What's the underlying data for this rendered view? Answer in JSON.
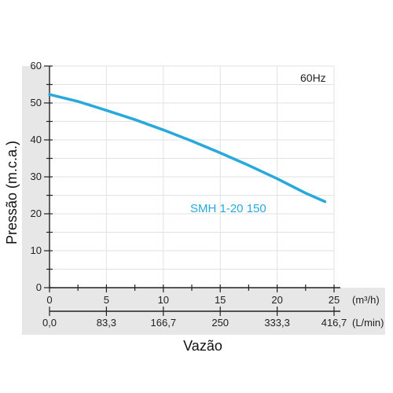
{
  "chart_data": {
    "type": "line",
    "ylabel": "Pressão (m.c.a.)",
    "xlabel": "Vazão",
    "ylim": [
      0,
      60
    ],
    "y_ticks": [
      "0",
      "10",
      "20",
      "30",
      "40",
      "50",
      "60"
    ],
    "xlim": [
      0,
      25
    ],
    "x_ticks": [
      "0",
      "5",
      "10",
      "15",
      "20",
      "25"
    ],
    "x_unit": "(m³/h)",
    "x_ticks_secondary": [
      "0,0",
      "83,3",
      "166,7",
      "250",
      "333,3",
      "416,7"
    ],
    "x_unit_secondary": "(L/min)",
    "grid": true,
    "annotation": "60Hz",
    "series": [
      {
        "name": "SMH 1-20 150",
        "color": "#29a8dc",
        "x": [
          0,
          2.5,
          5,
          7.5,
          10,
          12.5,
          15,
          17.5,
          20,
          22.5,
          24.2
        ],
        "y": [
          52.3,
          50.4,
          48.0,
          45.5,
          42.7,
          39.7,
          36.5,
          33.1,
          29.5,
          25.6,
          23.3
        ]
      }
    ]
  }
}
